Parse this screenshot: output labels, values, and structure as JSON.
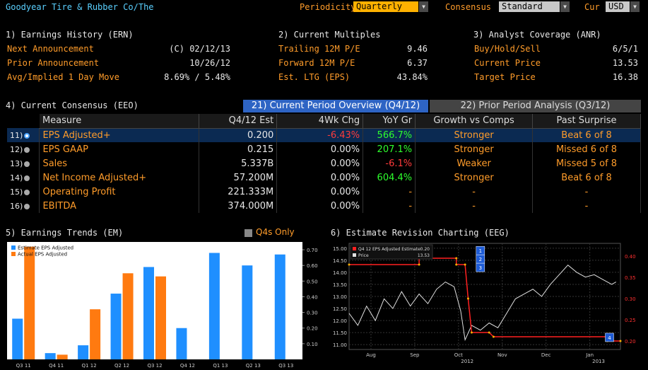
{
  "header": {
    "security": "Goodyear Tire & Rubber Co/The",
    "periodicity_label": "Periodicity",
    "periodicity_value": "Quarterly",
    "consensus_label": "Consensus",
    "consensus_value": "Standard",
    "cur_label": "Cur",
    "cur_value": "USD"
  },
  "ern": {
    "title": "1) Earnings History (ERN)",
    "rows": [
      {
        "label": "Next Announcement",
        "value": "(C)  02/12/13"
      },
      {
        "label": "Prior Announcement",
        "value": "10/26/12"
      },
      {
        "label": "Avg/Implied 1 Day Move",
        "value": "8.69% / 5.48%"
      }
    ]
  },
  "multiples": {
    "title": "2) Current Multiples",
    "rows": [
      {
        "label": "Trailing 12M P/E",
        "value": "9.46"
      },
      {
        "label": "Forward 12M P/E",
        "value": "6.37"
      },
      {
        "label": "Est. LTG (EPS)",
        "value": "43.84%"
      }
    ]
  },
  "anr": {
    "title": "3) Analyst Coverage (ANR)",
    "rows": [
      {
        "label": "Buy/Hold/Sell",
        "value": "6/5/1"
      },
      {
        "label": "Current Price",
        "value": "13.53"
      },
      {
        "label": "Target Price",
        "value": "16.38"
      }
    ]
  },
  "eeo": {
    "title": "4) Current Consensus (EEO)",
    "tab_active": "21) Current Period Overview (Q4/12)",
    "tab_inactive": "22) Prior Period Analysis (Q3/12)",
    "columns": [
      "Measure",
      "Q4/12 Est",
      "4Wk Chg",
      "YoY Gr",
      "Growth vs Comps",
      "Past Surprise"
    ],
    "rows": [
      {
        "num": "11)",
        "measure": "EPS Adjusted+",
        "est": "0.200",
        "chg": "-6.43%",
        "chg_color": "#ff3b3b",
        "yoy": "566.7%",
        "yoy_color": "#2dff2d",
        "comps": "Stronger",
        "surprise": "Beat 6 of 8"
      },
      {
        "num": "12)",
        "measure": "EPS GAAP",
        "est": "0.215",
        "chg": "0.00%",
        "chg_color": "#e8e8e8",
        "yoy": "207.1%",
        "yoy_color": "#2dff2d",
        "comps": "Stronger",
        "surprise": "Missed 6 of 8"
      },
      {
        "num": "13)",
        "measure": "Sales",
        "est": "5.337B",
        "chg": "0.00%",
        "chg_color": "#e8e8e8",
        "yoy": "-6.1%",
        "yoy_color": "#ff3b3b",
        "comps": "Weaker",
        "surprise": "Missed 5 of 8"
      },
      {
        "num": "14)",
        "measure": "Net Income Adjusted+",
        "est": "57.200M",
        "chg": "0.00%",
        "chg_color": "#e8e8e8",
        "yoy": "604.4%",
        "yoy_color": "#2dff2d",
        "comps": "Stronger",
        "surprise": "Beat 6 of 8"
      },
      {
        "num": "15)",
        "measure": "Operating Profit",
        "est": "221.333M",
        "chg": "0.00%",
        "chg_color": "#e8e8e8",
        "yoy": "-",
        "yoy_color": "#ff9c2a",
        "comps": "-",
        "surprise": "-"
      },
      {
        "num": "16)",
        "measure": "EBITDA",
        "est": "374.000M",
        "chg": "0.00%",
        "chg_color": "#e8e8e8",
        "yoy": "-",
        "yoy_color": "#ff9c2a",
        "comps": "-",
        "surprise": "-"
      }
    ]
  },
  "em": {
    "title": "5) Earnings Trends (EM)",
    "q4_only": "Q4s Only"
  },
  "eeg": {
    "title": "6) Estimate Revision Charting (EEG)"
  },
  "chart_data": [
    {
      "type": "bar",
      "categories": [
        "Q3 11",
        "Q4 11",
        "Q1 12",
        "Q2 12",
        "Q3 12",
        "Q4 12",
        "Q1 13",
        "Q2 13",
        "Q3 13"
      ],
      "series": [
        {
          "name": "Estimate EPS Adjusted",
          "color": "#1f8fff",
          "values": [
            0.26,
            0.04,
            0.09,
            0.42,
            0.59,
            0.2,
            0.68,
            0.6,
            0.67
          ]
        },
        {
          "name": "Actual EPS Adjusted",
          "color": "#ff7a10",
          "values": [
            0.72,
            0.03,
            0.32,
            0.55,
            0.53,
            null,
            null,
            null,
            null
          ]
        }
      ],
      "ylim": [
        0,
        0.75
      ],
      "yticks": [
        "0.10",
        "0.20",
        "0.30",
        "0.40",
        "0.50",
        "0.60",
        "0.70"
      ],
      "ytick_values": [
        0.1,
        0.2,
        0.3,
        0.4,
        0.5,
        0.6,
        0.7
      ]
    },
    {
      "type": "line",
      "legend": [
        {
          "name": "Q4 12 EPS Adjusted Estimate",
          "value": "0.20",
          "color": "#ff2020"
        },
        {
          "name": "Price",
          "value": "13.53",
          "color": "#e0e0e0"
        }
      ],
      "xlabels": [
        "Aug",
        "Sep",
        "Oct",
        "Nov",
        "Dec",
        "Jan"
      ],
      "xlabel_values": [
        0.5,
        1.5,
        2.5,
        3.5,
        4.5,
        5.5
      ],
      "year_labels": [
        "2012",
        "2013"
      ],
      "year_values": [
        2.7,
        5.7
      ],
      "left_ylim": [
        10.8,
        15.2
      ],
      "left_ticks": [
        "11.00",
        "11.50",
        "12.00",
        "12.50",
        "13.00",
        "13.50",
        "14.00",
        "14.50",
        "15.00"
      ],
      "left_tick_values": [
        11.0,
        11.5,
        12.0,
        12.5,
        13.0,
        13.5,
        14.0,
        14.5,
        15.0
      ],
      "right_ylim": [
        0.18,
        0.43
      ],
      "right_ticks": [
        "0.20",
        "0.25",
        "0.30",
        "0.35",
        "0.40"
      ],
      "right_tick_values": [
        0.2,
        0.25,
        0.3,
        0.35,
        0.4
      ],
      "x_range": [
        0,
        6.2
      ],
      "estimate": [
        [
          0.0,
          0.38
        ],
        [
          1.6,
          0.38
        ],
        [
          1.6,
          0.395
        ],
        [
          2.45,
          0.395
        ],
        [
          2.45,
          0.38
        ],
        [
          2.65,
          0.38
        ],
        [
          2.72,
          0.3
        ],
        [
          2.8,
          0.22
        ],
        [
          3.2,
          0.22
        ],
        [
          3.3,
          0.21
        ],
        [
          5.9,
          0.21
        ],
        [
          5.9,
          0.2
        ],
        [
          6.2,
          0.2
        ]
      ],
      "price": [
        [
          0.0,
          12.3
        ],
        [
          0.2,
          11.8
        ],
        [
          0.4,
          12.6
        ],
        [
          0.6,
          12.0
        ],
        [
          0.8,
          12.9
        ],
        [
          1.0,
          12.5
        ],
        [
          1.2,
          13.2
        ],
        [
          1.4,
          12.6
        ],
        [
          1.6,
          13.1
        ],
        [
          1.8,
          12.7
        ],
        [
          2.0,
          13.3
        ],
        [
          2.2,
          13.6
        ],
        [
          2.4,
          13.4
        ],
        [
          2.55,
          12.4
        ],
        [
          2.65,
          11.2
        ],
        [
          2.8,
          11.8
        ],
        [
          3.0,
          11.6
        ],
        [
          3.2,
          11.9
        ],
        [
          3.4,
          11.7
        ],
        [
          3.6,
          12.3
        ],
        [
          3.8,
          12.9
        ],
        [
          4.0,
          13.1
        ],
        [
          4.2,
          13.3
        ],
        [
          4.4,
          13.0
        ],
        [
          4.6,
          13.5
        ],
        [
          4.8,
          13.9
        ],
        [
          5.0,
          14.3
        ],
        [
          5.2,
          14.0
        ],
        [
          5.4,
          13.8
        ],
        [
          5.6,
          13.9
        ],
        [
          5.8,
          13.7
        ],
        [
          6.0,
          13.5
        ],
        [
          6.1,
          13.6
        ]
      ],
      "markers": [
        {
          "label": "1",
          "x": 3.0,
          "y": 14.9
        },
        {
          "label": "2",
          "x": 3.0,
          "y": 14.55
        },
        {
          "label": "3",
          "x": 3.0,
          "y": 14.2
        },
        {
          "label": "4",
          "x": 5.95,
          "y": 11.3
        }
      ]
    }
  ]
}
